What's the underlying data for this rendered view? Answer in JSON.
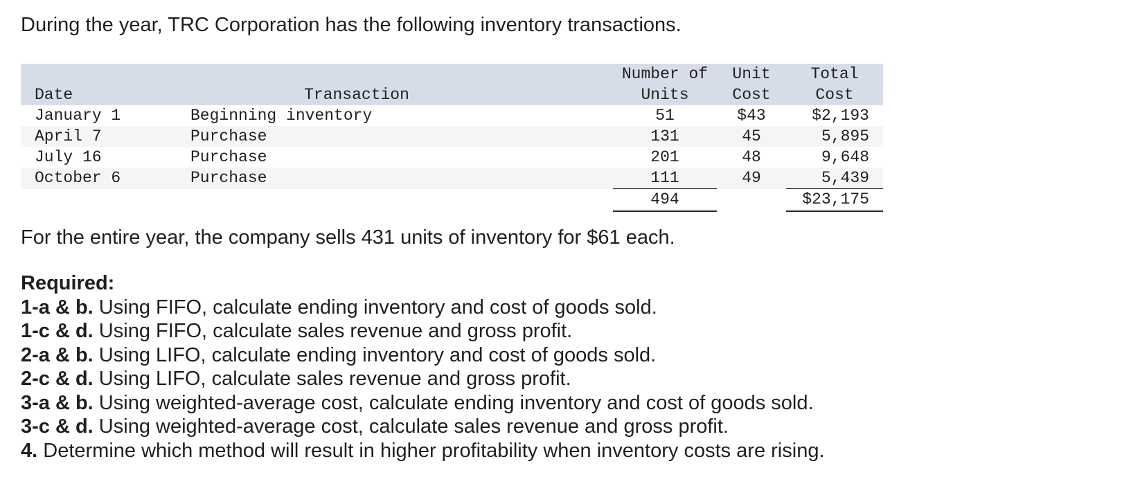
{
  "intro": "During the year, TRC Corporation has the following inventory transactions.",
  "table": {
    "headers": {
      "date": "Date",
      "transaction": "Transaction",
      "units_line1": "Number of",
      "units_line2": "Units",
      "unit_cost_line1": "Unit",
      "unit_cost_line2": "Cost",
      "total_cost_line1": "Total",
      "total_cost_line2": "Cost"
    },
    "rows": [
      {
        "date": "January 1",
        "transaction": "Beginning inventory",
        "units": "51",
        "unit_cost": "$43",
        "total_cost": "$2,193"
      },
      {
        "date": "April 7",
        "transaction": "Purchase",
        "units": "131",
        "unit_cost": "45",
        "total_cost": "5,895"
      },
      {
        "date": "July 16",
        "transaction": "Purchase",
        "units": "201",
        "unit_cost": "48",
        "total_cost": "9,648"
      },
      {
        "date": "October 6",
        "transaction": "Purchase",
        "units": "111",
        "unit_cost": "49",
        "total_cost": "5,439"
      }
    ],
    "totals": {
      "units": "494",
      "total_cost": "$23,175"
    }
  },
  "sells": "For the entire year, the company sells 431 units of inventory for $61 each.",
  "required": {
    "heading": "Required:",
    "items": [
      {
        "label": "1-a & b.",
        "text": " Using FIFO, calculate ending inventory and cost of goods sold."
      },
      {
        "label": "1-c & d.",
        "text": " Using FIFO, calculate sales revenue and gross profit."
      },
      {
        "label": "2-a & b.",
        "text": " Using LIFO, calculate ending inventory and cost of goods sold."
      },
      {
        "label": "2-c & d.",
        "text": " Using LIFO, calculate sales revenue and gross profit."
      },
      {
        "label": "3-a & b.",
        "text": " Using weighted-average cost, calculate ending inventory and cost of goods sold."
      },
      {
        "label": "3-c & d.",
        "text": " Using weighted-average cost, calculate sales revenue and gross profit."
      },
      {
        "label": "4.",
        "text": " Determine which method will result in higher profitability when inventory costs are rising."
      }
    ]
  }
}
